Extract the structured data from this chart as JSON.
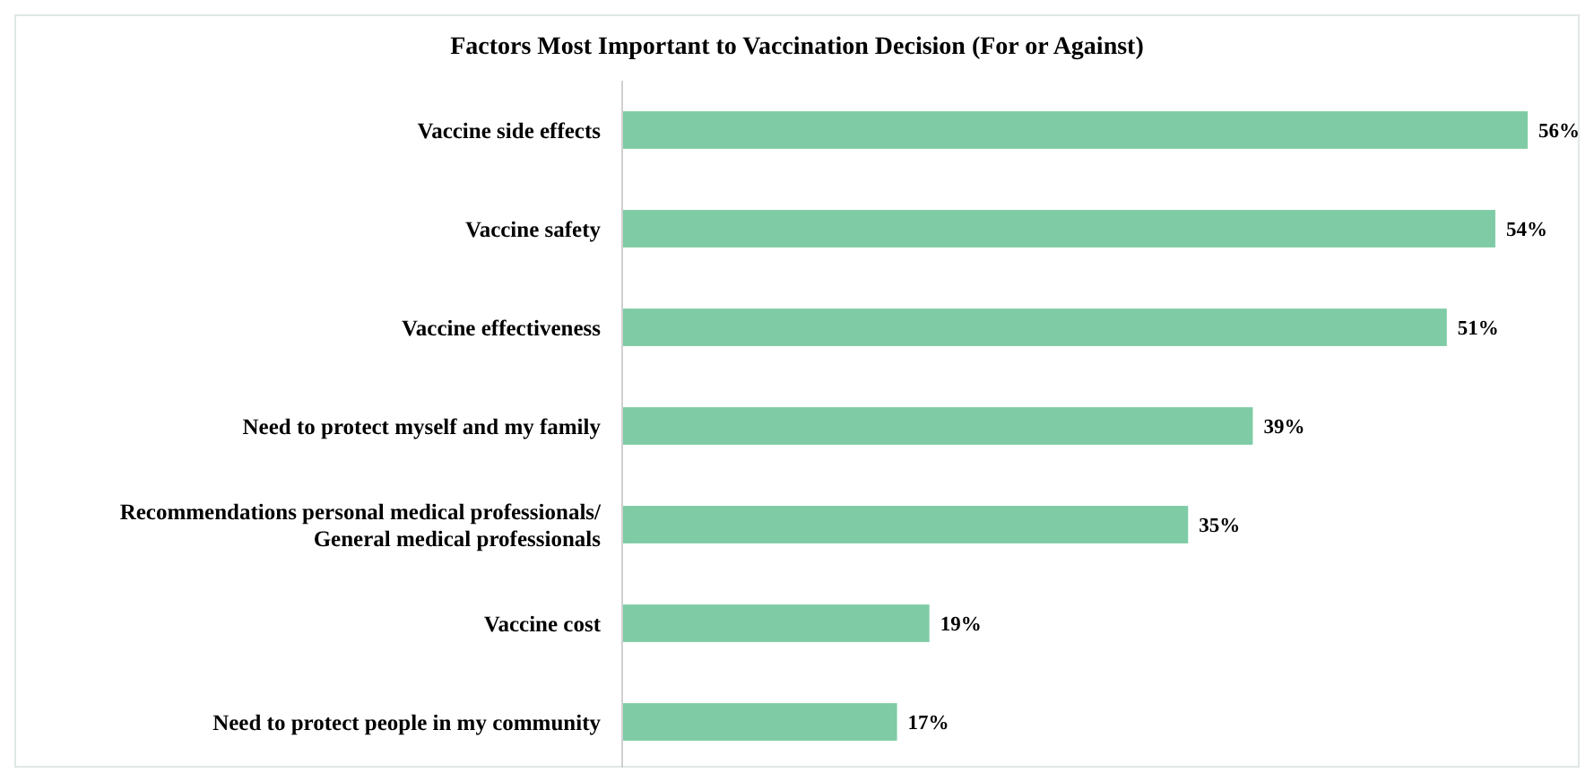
{
  "chart_data": {
    "type": "bar",
    "orientation": "horizontal",
    "title": "Factors Most Important to Vaccination Decision (For or Against)",
    "categories": [
      "Vaccine side effects",
      "Vaccine safety",
      "Vaccine effectiveness",
      "Need to protect myself and my family",
      "Recommendations personal medical professionals/ General medical professionals",
      "Vaccine cost",
      "Need to protect people in my community"
    ],
    "values": [
      56,
      54,
      51,
      39,
      35,
      19,
      17
    ],
    "value_labels": [
      "56%",
      "54%",
      "51%",
      "39%",
      "35%",
      "19%",
      "17%"
    ],
    "color": "#7ecba5"
  }
}
